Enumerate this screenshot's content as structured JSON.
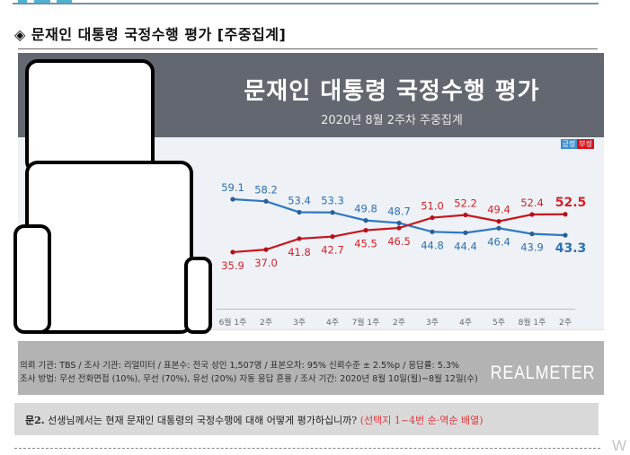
{
  "section": {
    "bullet_icon": "diamond-icon",
    "title": "◈ 문재인 대통령 국정수행 평가 [주중집계]"
  },
  "chart_header": {
    "title": "문재인 대통령 국정수행 평가",
    "subtitle": "2020년 8월 2주차 주중집계"
  },
  "legend": {
    "positive": "긍정",
    "negative": "부정",
    "positive_color": "#3f8fcf",
    "negative_color": "#d5161d"
  },
  "chart_data": {
    "type": "line",
    "title": "문재인 대통령 국정수행 평가",
    "subtitle": "2020년 8월 2주차 주중집계",
    "xlabel": "",
    "ylabel": "",
    "categories": [
      "6월 1주",
      "2주",
      "3주",
      "4주",
      "7월 1주",
      "2주",
      "3주",
      "4주",
      "5주",
      "8월 1주",
      "2주"
    ],
    "series": [
      {
        "name": "긍정",
        "color": "#2e78c2",
        "values": [
          59.1,
          58.2,
          53.4,
          53.3,
          49.8,
          48.7,
          44.8,
          44.4,
          46.4,
          43.9,
          43.3
        ]
      },
      {
        "name": "부정",
        "color": "#c8161e",
        "values": [
          35.9,
          37.0,
          41.8,
          42.7,
          45.5,
          46.5,
          51.0,
          52.2,
          49.4,
          52.4,
          52.5
        ]
      }
    ],
    "legend_position": "top-right",
    "grid": false,
    "data_labels": true
  },
  "info": {
    "line1": "의뢰 기관: TBS / 조사 기관: 리얼미터 / 표본수: 전국 성인 1,507명 / 표본오차: 95% 신뢰수준 ± 2.5%p / 응답률: 5.3%",
    "line2": "조사 방법: 무선 전화면접 (10%), 무선 (70%), 유선 (20%) 자동 응답 혼용 / 조사 기간: 2020년 8월 10일(월)~8월 12일(수)",
    "brand": "REALMETER"
  },
  "question": {
    "label": "문2.",
    "text": " 선생님께서는 현재 문재인 대통령의 국정수행에 대해 어떻게 평가하십니까? ",
    "note": "(선택지 1~4번 순·역순 배열)"
  },
  "watermark": "W"
}
